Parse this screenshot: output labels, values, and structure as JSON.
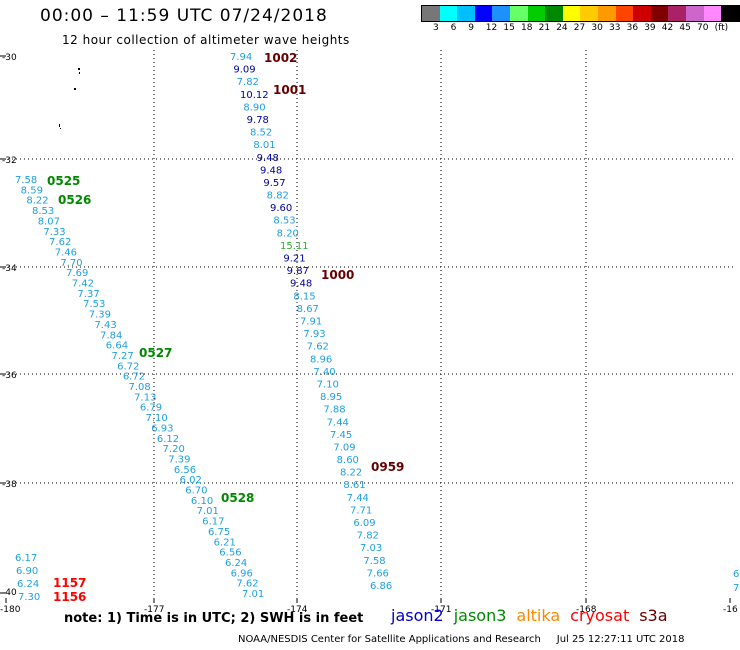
{
  "header": {
    "title": "00:00 – 11:59 UTC 07/24/2018",
    "subtitle": "12 hour collection of altimeter wave heights"
  },
  "legend": {
    "colors": [
      "#777777",
      "#00ffff",
      "#00bfff",
      "#0000ff",
      "#1e90ff",
      "#66ff66",
      "#00cc00",
      "#008800",
      "#ffff00",
      "#ffcc00",
      "#ff9900",
      "#ff4400",
      "#cc0000",
      "#800000",
      "#aa2266",
      "#cc66cc",
      "#ff88ff",
      "#000000"
    ],
    "labels": [
      "3",
      "6",
      "9",
      "12",
      "15",
      "18",
      "21",
      "24",
      "27",
      "30",
      "33",
      "36",
      "39",
      "42",
      "45",
      "70",
      "(ft)"
    ]
  },
  "axes": {
    "lon_ticks": [
      "-180",
      "-177",
      "-174",
      "-171",
      "-168",
      "-16"
    ],
    "lat_ticks": [
      "-30",
      "-32",
      "-34",
      "-36",
      "-38",
      "-40"
    ]
  },
  "colors": {
    "jason2": "#0000cc",
    "jason3": "#008800",
    "altika": "#ff8800",
    "cryosat": "#ff0000",
    "s3a": "#660000",
    "swh_light": "#1ea0e0",
    "swh_dark": "#0000a0",
    "swh_green": "#33aa33"
  },
  "tracks": [
    {
      "labels": [
        [
          "7.94",
          "light"
        ],
        [
          "9.09",
          "dark"
        ],
        [
          "7.82",
          "light"
        ],
        [
          "10.12",
          "dark"
        ],
        [
          "8.90",
          "light"
        ],
        [
          "9.78",
          "dark"
        ],
        [
          "8.52",
          "light"
        ],
        [
          "8.01",
          "light"
        ],
        [
          "9.48",
          "dark"
        ],
        [
          "9.48",
          "dark"
        ],
        [
          "9.57",
          "dark"
        ],
        [
          "8.82",
          "light"
        ],
        [
          "9.60",
          "dark"
        ],
        [
          "8.53",
          "light"
        ],
        [
          "8.20",
          "light"
        ],
        [
          "15.11",
          "green"
        ],
        [
          "9.21",
          "dark"
        ],
        [
          "9.87",
          "dark"
        ],
        [
          "9.48",
          "dark"
        ],
        [
          "8.15",
          "light"
        ],
        [
          "8.67",
          "light"
        ],
        [
          "7.91",
          "light"
        ],
        [
          "7.93",
          "light"
        ],
        [
          "7.62",
          "light"
        ],
        [
          "8.96",
          "light"
        ],
        [
          "7.40",
          "light"
        ],
        [
          "7.10",
          "light"
        ],
        [
          "8.95",
          "light"
        ],
        [
          "7.88",
          "light"
        ],
        [
          "7.44",
          "light"
        ],
        [
          "7.45",
          "light"
        ],
        [
          "7.09",
          "light"
        ],
        [
          "8.60",
          "light"
        ],
        [
          "8.22",
          "light"
        ],
        [
          "8.61",
          "light"
        ],
        [
          "7.44",
          "light"
        ],
        [
          "7.71",
          "light"
        ],
        [
          "6.09",
          "light"
        ],
        [
          "7.82",
          "light"
        ],
        [
          "7.03",
          "light"
        ],
        [
          "7.58",
          "light"
        ],
        [
          "7.66",
          "light"
        ],
        [
          "6.86",
          "light"
        ]
      ],
      "times": [
        [
          "1002",
          "s3a"
        ],
        [
          "1001",
          "s3a"
        ],
        [
          "1000",
          "s3a"
        ],
        [
          "0959",
          "s3a"
        ]
      ]
    },
    {
      "labels": [
        [
          "7.58",
          "light"
        ],
        [
          "8.59",
          "light"
        ],
        [
          "8.22",
          "light"
        ],
        [
          "8.53",
          "light"
        ],
        [
          "8.07",
          "light"
        ],
        [
          "7.33",
          "light"
        ],
        [
          "7.62",
          "light"
        ],
        [
          "7.46",
          "light"
        ],
        [
          "7.70",
          "light"
        ],
        [
          "7.69",
          "light"
        ],
        [
          "7.42",
          "light"
        ],
        [
          "7.37",
          "light"
        ],
        [
          "7.53",
          "light"
        ],
        [
          "7.39",
          "light"
        ],
        [
          "7.43",
          "light"
        ],
        [
          "7.84",
          "light"
        ],
        [
          "6.64",
          "light"
        ],
        [
          "7.27",
          "light"
        ],
        [
          "6.72",
          "light"
        ],
        [
          "6.72",
          "light"
        ],
        [
          "7.08",
          "light"
        ],
        [
          "7.13",
          "light"
        ],
        [
          "6.79",
          "light"
        ],
        [
          "7.10",
          "light"
        ],
        [
          "6.93",
          "light"
        ],
        [
          "6.12",
          "light"
        ],
        [
          "7.20",
          "light"
        ],
        [
          "7.39",
          "light"
        ],
        [
          "6.56",
          "light"
        ],
        [
          "6.02",
          "light"
        ],
        [
          "6.70",
          "light"
        ],
        [
          "6.10",
          "light"
        ],
        [
          "7.01",
          "light"
        ],
        [
          "6.17",
          "light"
        ],
        [
          "6.75",
          "light"
        ],
        [
          "6.21",
          "light"
        ],
        [
          "6.56",
          "light"
        ],
        [
          "6.24",
          "light"
        ],
        [
          "6.96",
          "light"
        ],
        [
          "7.62",
          "light"
        ],
        [
          "7.01",
          "light"
        ]
      ],
      "times": [
        [
          "0525",
          "jason3"
        ],
        [
          "0526",
          "jason3"
        ],
        [
          "0527",
          "jason3"
        ],
        [
          "0528",
          "jason3"
        ]
      ]
    },
    {
      "labels": [
        [
          "6.17",
          "light"
        ],
        [
          "6.90",
          "light"
        ],
        [
          "6.24",
          "light"
        ],
        [
          "7.30",
          "light"
        ]
      ],
      "times": [
        [
          "1157",
          "cryosat"
        ],
        [
          "1156",
          "cryosat"
        ]
      ]
    }
  ],
  "footer": {
    "note": "note: 1) Time is in UTC; 2) SWH is in feet",
    "satellites": [
      {
        "name": "jason2",
        "color_key": "jason2"
      },
      {
        "name": "jason3",
        "color_key": "jason3"
      },
      {
        "name": "altika",
        "color_key": "altika"
      },
      {
        "name": "cryosat",
        "color_key": "cryosat"
      },
      {
        "name": "s3a",
        "color_key": "s3a"
      }
    ],
    "credit": "NOAA/NESDIS Center for Satellite Applications and Research",
    "timestamp": "Jul 25 12:27:11 UTC 2018"
  }
}
